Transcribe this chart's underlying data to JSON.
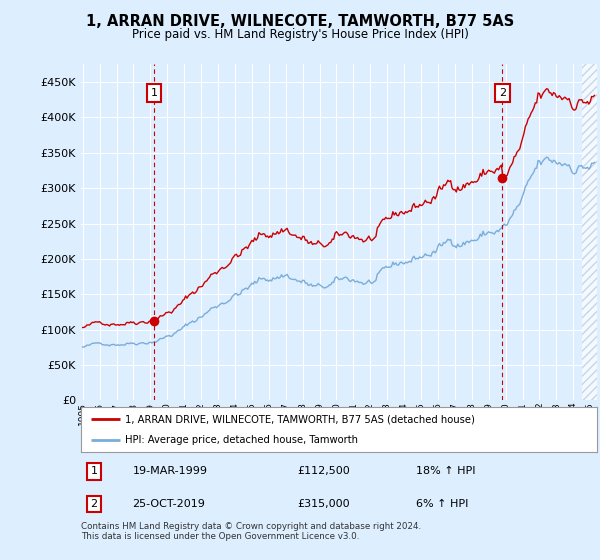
{
  "title": "1, ARRAN DRIVE, WILNECOTE, TAMWORTH, B77 5AS",
  "subtitle": "Price paid vs. HM Land Registry's House Price Index (HPI)",
  "legend_line1": "1, ARRAN DRIVE, WILNECOTE, TAMWORTH, B77 5AS (detached house)",
  "legend_line2": "HPI: Average price, detached house, Tamworth",
  "sale1_date": "19-MAR-1999",
  "sale1_price": "£112,500",
  "sale1_hpi": "18% ↑ HPI",
  "sale2_date": "25-OCT-2019",
  "sale2_price": "£315,000",
  "sale2_hpi": "6% ↑ HPI",
  "footer": "Contains HM Land Registry data © Crown copyright and database right 2024.\nThis data is licensed under the Open Government Licence v3.0.",
  "price_color": "#cc0000",
  "hpi_color": "#7aadd9",
  "bg_color": "#ddeeff",
  "plot_bg": "#ddeeff",
  "grid_color": "#ffffff",
  "dashed_color": "#cc0000",
  "ylim": [
    0,
    475000
  ],
  "yticks": [
    0,
    50000,
    100000,
    150000,
    200000,
    250000,
    300000,
    350000,
    400000,
    450000
  ],
  "sale1_x": 1999.21,
  "sale2_x": 2019.81,
  "hatch_start": 2024.5,
  "xmin": 1994.9,
  "xmax": 2025.4
}
